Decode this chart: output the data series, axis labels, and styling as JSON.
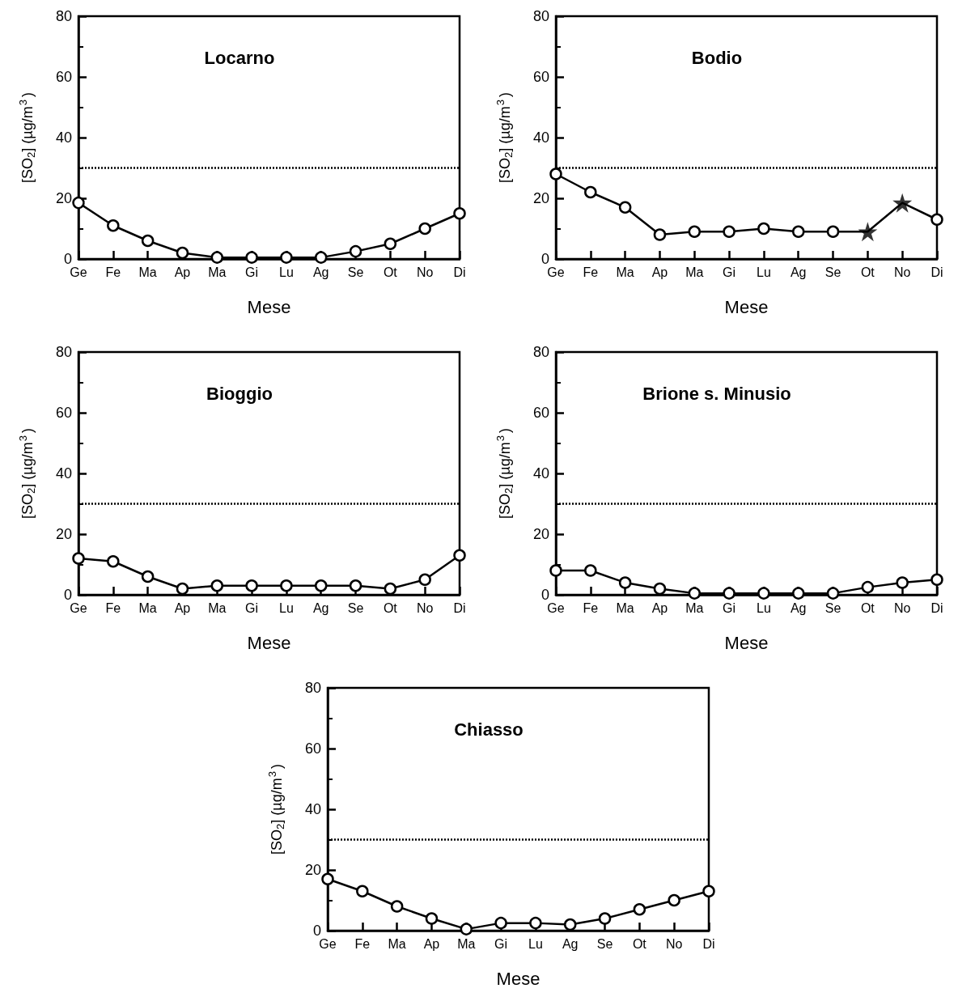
{
  "chart_data": [
    {
      "type": "line",
      "title": "Locarno",
      "xlabel": "Mese",
      "ylabel": "[SO$_{2}$] (µg/m$^{3}$)",
      "categories": [
        "Ge",
        "Fe",
        "Ma",
        "Ap",
        "Ma",
        "Gi",
        "Lu",
        "Ag",
        "Se",
        "Ot",
        "No",
        "Di"
      ],
      "ylim": [
        0,
        80
      ],
      "yticks": [
        0,
        20,
        40,
        60,
        80
      ],
      "grid": false,
      "marker": "circle",
      "line_style": "solid",
      "series": [
        {
          "color": "#000000",
          "values": [
            18.5,
            11,
            6,
            2,
            0.5,
            0.5,
            0.5,
            0.5,
            2.5,
            5,
            10,
            15
          ]
        }
      ],
      "ref_lines": [
        {
          "axis": "y",
          "value": 30,
          "line_style": "dotted",
          "color": "#000000"
        }
      ]
    },
    {
      "type": "line",
      "title": "Bodio",
      "xlabel": "Mese",
      "ylabel": "[SO$_{2}$] (µg/m$^{3}$)",
      "categories": [
        "Ge",
        "Fe",
        "Ma",
        "Ap",
        "Ma",
        "Gi",
        "Lu",
        "Ag",
        "Se",
        "Ot",
        "No",
        "Di"
      ],
      "ylim": [
        0,
        80
      ],
      "yticks": [
        0,
        20,
        40,
        60,
        80
      ],
      "grid": false,
      "marker": "circle",
      "line_style": "solid",
      "series": [
        {
          "color": "#000000",
          "values": [
            28,
            22,
            17,
            8,
            9,
            9,
            10,
            9,
            9,
            9,
            18.5,
            13
          ]
        },
        {
          "type": "scatter",
          "color": "#000000",
          "marker": "star",
          "x": [
            "Ot",
            "No"
          ],
          "values": [
            9,
            18.5
          ]
        }
      ],
      "ref_lines": [
        {
          "axis": "y",
          "value": 30,
          "line_style": "dotted",
          "color": "#000000"
        }
      ]
    },
    {
      "type": "line",
      "title": "Bioggio",
      "xlabel": "Mese",
      "ylabel": "[SO$_{2}$] (µg/m$^{3}$)",
      "categories": [
        "Ge",
        "Fe",
        "Ma",
        "Ap",
        "Ma",
        "Gi",
        "Lu",
        "Ag",
        "Se",
        "Ot",
        "No",
        "Di"
      ],
      "ylim": [
        0,
        80
      ],
      "yticks": [
        0,
        20,
        40,
        60,
        80
      ],
      "grid": false,
      "marker": "circle",
      "line_style": "solid",
      "series": [
        {
          "color": "#000000",
          "values": [
            12,
            11,
            6,
            2,
            3,
            3,
            3,
            3,
            3,
            2,
            5,
            13
          ]
        }
      ],
      "ref_lines": [
        {
          "axis": "y",
          "value": 30,
          "line_style": "dotted",
          "color": "#000000"
        }
      ]
    },
    {
      "type": "line",
      "title": "Brione s. Minusio",
      "xlabel": "Mese",
      "ylabel": "[SO$_{2}$] (µg/m$^{3}$)",
      "categories": [
        "Ge",
        "Fe",
        "Ma",
        "Ap",
        "Ma",
        "Gi",
        "Lu",
        "Ag",
        "Se",
        "Ot",
        "No",
        "Di"
      ],
      "ylim": [
        0,
        80
      ],
      "yticks": [
        0,
        20,
        40,
        60,
        80
      ],
      "grid": false,
      "marker": "circle",
      "line_style": "solid",
      "series": [
        {
          "color": "#000000",
          "values": [
            8,
            8,
            4,
            2,
            0.5,
            0.5,
            0.5,
            0.5,
            0.5,
            2.5,
            4,
            5
          ]
        }
      ],
      "ref_lines": [
        {
          "axis": "y",
          "value": 30,
          "line_style": "dotted",
          "color": "#000000"
        }
      ]
    },
    {
      "type": "line",
      "title": "Chiasso",
      "xlabel": "Mese",
      "ylabel": "[SO$_{2}$] (µg/m$^{3}$)",
      "categories": [
        "Ge",
        "Fe",
        "Ma",
        "Ap",
        "Ma",
        "Gi",
        "Lu",
        "Ag",
        "Se",
        "Ot",
        "No",
        "Di"
      ],
      "ylim": [
        0,
        80
      ],
      "yticks": [
        0,
        20,
        40,
        60,
        80
      ],
      "grid": false,
      "marker": "circle",
      "line_style": "solid",
      "series": [
        {
          "color": "#000000",
          "values": [
            17,
            13,
            8,
            4,
            0.5,
            2.5,
            2.5,
            2,
            4,
            7,
            10,
            13
          ]
        }
      ],
      "ref_lines": [
        {
          "axis": "y",
          "value": 30,
          "line_style": "dotted",
          "color": "#000000"
        }
      ]
    }
  ]
}
